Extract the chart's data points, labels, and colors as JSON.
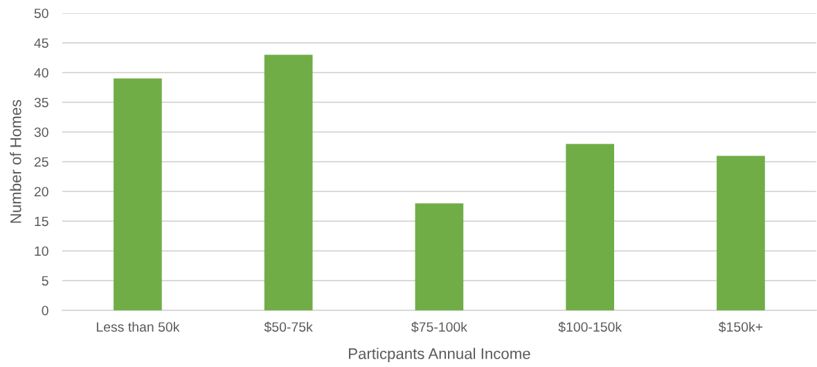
{
  "chart_data": {
    "type": "bar",
    "xlabel": "Particpants Annual Income",
    "ylabel": "Number of Homes",
    "categories": [
      "Less than 50k",
      "$50-75k",
      "$75-100k",
      "$100-150k",
      "$150k+"
    ],
    "series": [
      {
        "color": "#70ad47",
        "values": [
          39,
          43,
          18,
          28,
          26
        ]
      }
    ],
    "ylim": [
      0,
      50
    ],
    "yticks": [
      0,
      5,
      10,
      15,
      20,
      25,
      30,
      35,
      40,
      45,
      50
    ],
    "grid": "y"
  }
}
